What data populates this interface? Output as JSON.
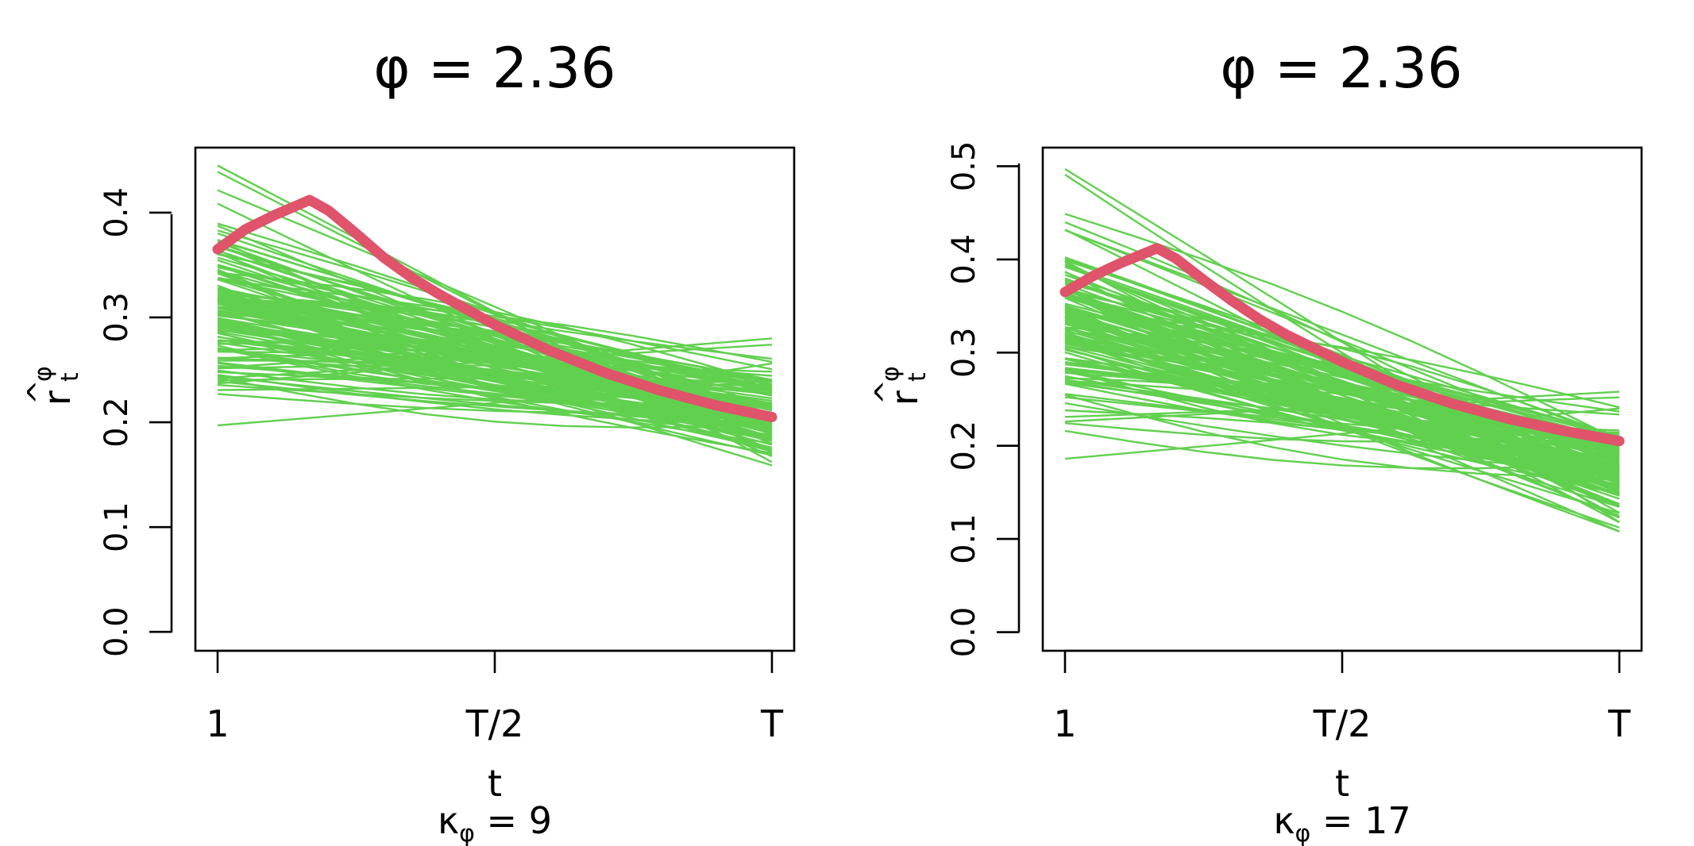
{
  "colors": {
    "simulations": "#61D04F",
    "truth": "#DF536B",
    "axes": "#000000"
  },
  "chart_data": [
    {
      "type": "line",
      "title": "φ = 2.36",
      "xlabel": "t",
      "caption": {
        "kappa": "κ",
        "sub": "φ",
        "eq": " = 9"
      },
      "ylabel": {
        "base": "r",
        "hat": "^",
        "sup": "φ",
        "sub": "t"
      },
      "x_ticks": [
        "1",
        "T/2",
        "T"
      ],
      "ylim": [
        -0.018,
        0.462
      ],
      "y_ticks": [
        {
          "value": 0.0,
          "label": "0.0"
        },
        {
          "value": 0.1,
          "label": "0.1"
        },
        {
          "value": 0.2,
          "label": "0.2"
        },
        {
          "value": 0.3,
          "label": "0.3"
        },
        {
          "value": 0.4,
          "label": "0.4"
        }
      ],
      "simulations": {
        "count": 140,
        "start_range": [
          0.197,
          0.445
        ],
        "end_range": [
          0.152,
          0.28
        ],
        "note": "bundle of simulated trajectories (approx. linear decline)"
      },
      "truth_series": {
        "name": "true curve",
        "points": [
          [
            0.0,
            0.365
          ],
          [
            0.05,
            0.384
          ],
          [
            0.1,
            0.397
          ],
          [
            0.166,
            0.412
          ],
          [
            0.2,
            0.402
          ],
          [
            0.25,
            0.38
          ],
          [
            0.3,
            0.357
          ],
          [
            0.35,
            0.338
          ],
          [
            0.4,
            0.322
          ],
          [
            0.5,
            0.293
          ],
          [
            0.6,
            0.268
          ],
          [
            0.7,
            0.247
          ],
          [
            0.8,
            0.23
          ],
          [
            0.9,
            0.216
          ],
          [
            1.0,
            0.205
          ]
        ]
      }
    },
    {
      "type": "line",
      "title": "φ = 2.36",
      "xlabel": "t",
      "caption": {
        "kappa": "κ",
        "sub": "φ",
        "eq": " = 17"
      },
      "ylabel": {
        "base": "r",
        "hat": "^",
        "sup": "φ",
        "sub": "t"
      },
      "x_ticks": [
        "1",
        "T/2",
        "T"
      ],
      "ylim": [
        -0.02,
        0.52
      ],
      "y_ticks": [
        {
          "value": 0.0,
          "label": "0.0"
        },
        {
          "value": 0.1,
          "label": "0.1"
        },
        {
          "value": 0.2,
          "label": "0.2"
        },
        {
          "value": 0.3,
          "label": "0.3"
        },
        {
          "value": 0.4,
          "label": "0.4"
        },
        {
          "value": 0.5,
          "label": "0.5"
        }
      ],
      "simulations": {
        "count": 140,
        "start_range": [
          0.186,
          0.497
        ],
        "end_range": [
          0.108,
          0.258
        ],
        "note": "bundle of simulated trajectories (approx. linear decline)"
      },
      "truth_series": {
        "name": "true curve",
        "points": [
          [
            0.0,
            0.365
          ],
          [
            0.05,
            0.382
          ],
          [
            0.1,
            0.396
          ],
          [
            0.166,
            0.412
          ],
          [
            0.2,
            0.401
          ],
          [
            0.25,
            0.378
          ],
          [
            0.3,
            0.356
          ],
          [
            0.35,
            0.336
          ],
          [
            0.4,
            0.319
          ],
          [
            0.5,
            0.29
          ],
          [
            0.6,
            0.265
          ],
          [
            0.7,
            0.245
          ],
          [
            0.8,
            0.229
          ],
          [
            0.9,
            0.216
          ],
          [
            1.0,
            0.205
          ]
        ]
      }
    }
  ]
}
